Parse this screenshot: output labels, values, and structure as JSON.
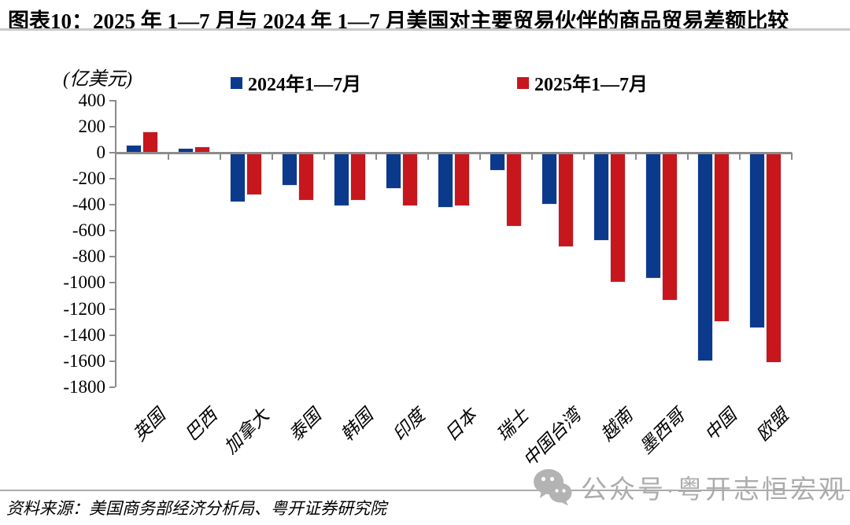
{
  "header": {
    "title": "图表10：2025 年 1—7 月与 2024 年 1—7 月美国对主要贸易伙伴的商品贸易差额比较"
  },
  "chart_data": {
    "type": "bar",
    "title": "图表10：2025 年 1—7 月与 2024 年 1—7 月美国对主要贸易伙伴的商品贸易差额比较",
    "unit_label": "(亿美元)",
    "categories": [
      "英国",
      "巴西",
      "加拿大",
      "泰国",
      "韩国",
      "印度",
      "日本",
      "瑞士",
      "中国台湾",
      "越南",
      "墨西哥",
      "中国",
      "欧盟"
    ],
    "series": [
      {
        "name": "2024年1—7月",
        "color": "#0b3a8c",
        "values": [
          55,
          33,
          -372,
          -246,
          -402,
          -274,
          -418,
          -135,
          -394,
          -670,
          -963,
          -1595,
          -1340
        ]
      },
      {
        "name": "2025年1—7月",
        "color": "#c8161d",
        "values": [
          157,
          43,
          -320,
          -362,
          -365,
          -402,
          -403,
          -563,
          -717,
          -989,
          -1133,
          -1293,
          -1609
        ]
      }
    ],
    "ylim": [
      -1800,
      400
    ],
    "yticks": [
      400,
      200,
      0,
      -200,
      -400,
      -600,
      -800,
      -1000,
      -1200,
      -1400,
      -1600,
      -1800
    ],
    "grid": false,
    "legend_position": "top",
    "axis_color": "#8c8c8c"
  },
  "footer": {
    "source": "资料来源：美国商务部经济分析局、粤开证券研究院"
  },
  "watermark": {
    "icon": "wechat-icon",
    "text": "公众号·粤开志恒宏观",
    "color": "#acacac"
  }
}
